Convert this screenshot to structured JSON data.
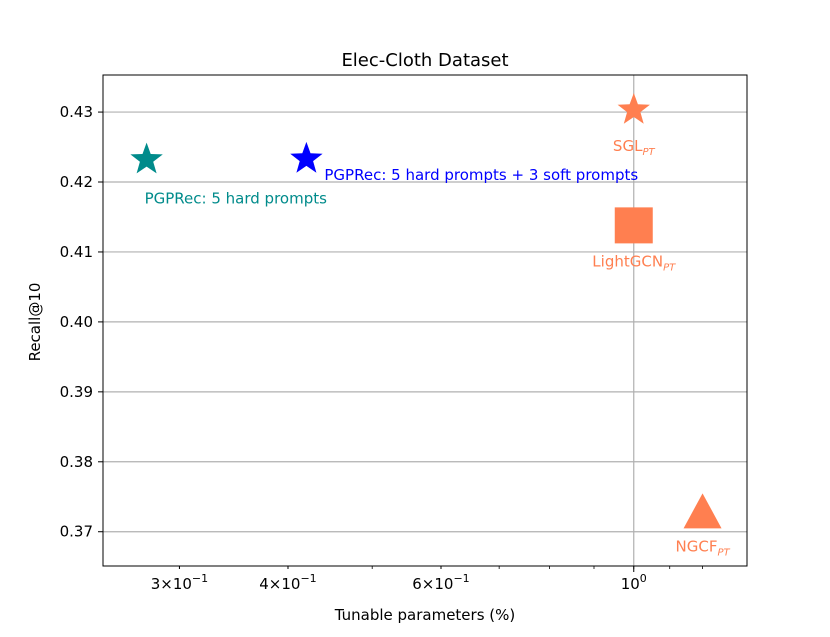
{
  "chart_data": {
    "type": "scatter",
    "title": "Elec-Cloth Dataset",
    "xlabel": "Tunable parameters (%)",
    "ylabel": "Recall@10",
    "x_scale": "log",
    "xlim": [
      0.245,
      1.35
    ],
    "ylim": [
      0.3651,
      0.4353
    ],
    "grid": true,
    "x_ticks": [
      {
        "value": 0.3,
        "base": "3×10",
        "exp": "−1"
      },
      {
        "value": 0.4,
        "base": "4×10",
        "exp": "−1"
      },
      {
        "value": 0.6,
        "base": "6×10",
        "exp": "−1"
      },
      {
        "value": 1.0,
        "base": "10",
        "exp": "0"
      }
    ],
    "y_ticks": [
      "0.37",
      "0.38",
      "0.39",
      "0.40",
      "0.41",
      "0.42",
      "0.43"
    ],
    "y_tick_values": [
      0.37,
      0.38,
      0.39,
      0.4,
      0.41,
      0.42,
      0.43
    ],
    "points": [
      {
        "label": "PGPRec: 5 hard prompts",
        "sub": "",
        "x": 0.275,
        "y": 0.4232,
        "marker": "star",
        "color": "#008b8b",
        "label_pos": "below-right"
      },
      {
        "label": "PGPRec: 5 hard prompts + 3 soft prompts",
        "sub": "",
        "x": 0.42,
        "y": 0.4233,
        "marker": "star",
        "color": "#0000ff",
        "label_pos": "right"
      },
      {
        "label": "SGL",
        "sub": "PT",
        "x": 1.0,
        "y": 0.4303,
        "marker": "star",
        "color": "#ff7f50",
        "label_pos": "below"
      },
      {
        "label": "LightGCN",
        "sub": "PT",
        "x": 1.0,
        "y": 0.4138,
        "marker": "square",
        "color": "#ff7f50",
        "label_pos": "below"
      },
      {
        "label": "NGCF",
        "sub": "PT",
        "x": 1.2,
        "y": 0.3722,
        "marker": "triangle",
        "color": "#ff7f50",
        "label_pos": "below"
      }
    ]
  }
}
